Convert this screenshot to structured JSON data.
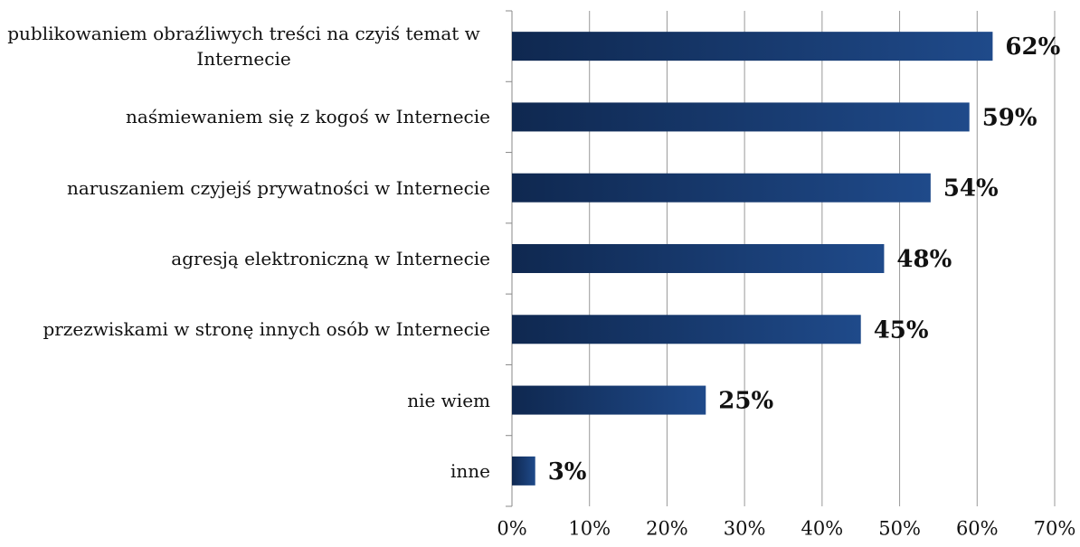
{
  "chart_data": {
    "type": "bar",
    "orientation": "horizontal",
    "categories": [
      "publikowaniem obraźliwych treści na czyiś temat w Internecie",
      "naśmiewaniem się z kogoś w Internecie",
      "naruszaniem czyjejś prywatności w Internecie",
      "agresją elektroniczną w Internecie",
      "przezwiskami w stronę innych osób w Internecie",
      "nie wiem",
      "inne"
    ],
    "values": [
      62,
      59,
      54,
      48,
      45,
      25,
      3
    ],
    "value_labels": [
      "62%",
      "59%",
      "54%",
      "48%",
      "45%",
      "25%",
      "3%"
    ],
    "color": "#1a3d75",
    "xlim": [
      0,
      70
    ],
    "xticks": [
      {
        "value": 0,
        "label": "0%"
      },
      {
        "value": 10,
        "label": "10%"
      },
      {
        "value": 20,
        "label": "20%"
      },
      {
        "value": 30,
        "label": "30%"
      },
      {
        "value": 40,
        "label": "40%"
      },
      {
        "value": 50,
        "label": "50%"
      },
      {
        "value": 60,
        "label": "60%"
      },
      {
        "value": 70,
        "label": "70%"
      }
    ],
    "grid": true
  }
}
